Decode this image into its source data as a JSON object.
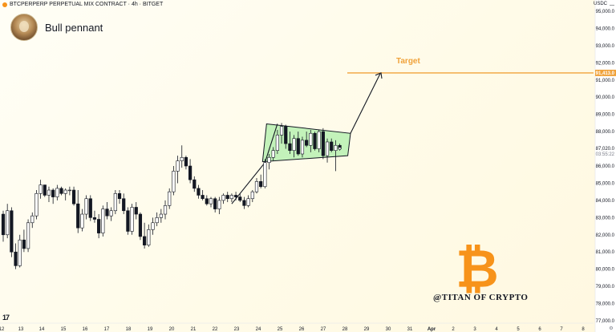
{
  "header": {
    "symbol_title": "BTCPERPERP PERPETUAL MIX CONTRACT · 4h · BITGET",
    "currency": "USDC",
    "idea_title": "Bull pennant"
  },
  "branding": {
    "tv_logo": "17",
    "watermark": "@TITAN OF CRYPTO",
    "btc_symbol": "₿"
  },
  "colors": {
    "up": "#131722",
    "down": "#131722",
    "up_fill": "#ffffff",
    "pennant_fill": "#b9f0b2",
    "target_line": "#f0a23a",
    "price_badge": "#f0a23a",
    "brand": "#f7931a"
  },
  "chart_data": {
    "type": "candlestick",
    "title": "Bull pennant",
    "timeframe": "4h",
    "ylim": [
      77000,
      95000
    ],
    "y_ticks": [
      "95,000.0",
      "94,000.0",
      "93,000.0",
      "92,000.0",
      "91,000.0",
      "90,000.0",
      "89,000.0",
      "88,000.0",
      "87,000.0",
      "86,000.0",
      "85,000.0",
      "84,000.0",
      "83,000.0",
      "82,000.0",
      "81,000.0",
      "80,000.0",
      "79,000.0",
      "78,000.0",
      "77,000.0"
    ],
    "x_ticks": [
      "12",
      "13",
      "14",
      "15",
      "16",
      "17",
      "18",
      "19",
      "20",
      "21",
      "22",
      "23",
      "24",
      "25",
      "26",
      "27",
      "28",
      "29",
      "30",
      "31",
      "Apr",
      "2",
      "3",
      "4",
      "5",
      "6",
      "7",
      "8"
    ],
    "candles": [
      [
        83200,
        83400,
        81600,
        82000
      ],
      [
        82000,
        83800,
        81800,
        83400
      ],
      [
        83400,
        83600,
        80700,
        81000
      ],
      [
        81000,
        81500,
        80000,
        80200
      ],
      [
        80200,
        82000,
        80100,
        81700
      ],
      [
        81700,
        82300,
        81000,
        81200
      ],
      [
        81200,
        82900,
        81000,
        82700
      ],
      [
        82700,
        83300,
        82400,
        83100
      ],
      [
        83100,
        84600,
        82900,
        84400
      ],
      [
        84400,
        85200,
        84100,
        84900
      ],
      [
        84900,
        84900,
        84200,
        84300
      ],
      [
        84300,
        84800,
        83900,
        84600
      ],
      [
        84600,
        84700,
        83800,
        84200
      ],
      [
        84200,
        84900,
        84000,
        84700
      ],
      [
        84700,
        84800,
        84300,
        84400
      ],
      [
        84400,
        84700,
        84000,
        84600
      ],
      [
        84600,
        84800,
        84300,
        84600
      ],
      [
        84600,
        84800,
        83700,
        83800
      ],
      [
        83800,
        84600,
        82100,
        82400
      ],
      [
        82400,
        83500,
        82200,
        83200
      ],
      [
        83200,
        84300,
        82900,
        84100
      ],
      [
        84100,
        84300,
        82800,
        83000
      ],
      [
        83000,
        83400,
        82700,
        82900
      ],
      [
        82900,
        83200,
        81800,
        82100
      ],
      [
        82100,
        83700,
        81900,
        83500
      ],
      [
        83500,
        83900,
        82900,
        83100
      ],
      [
        83100,
        83600,
        82800,
        83400
      ],
      [
        83400,
        84600,
        83200,
        84400
      ],
      [
        84400,
        84600,
        83800,
        84100
      ],
      [
        84100,
        84400,
        83200,
        83400
      ],
      [
        83400,
        83600,
        82000,
        82200
      ],
      [
        82200,
        83800,
        82000,
        83600
      ],
      [
        83600,
        83900,
        82900,
        83200
      ],
      [
        83200,
        83300,
        81700,
        81900
      ],
      [
        81900,
        82700,
        81200,
        81400
      ],
      [
        81400,
        82600,
        81300,
        82300
      ],
      [
        82300,
        83000,
        82000,
        82700
      ],
      [
        82700,
        83300,
        82500,
        83000
      ],
      [
        83000,
        83500,
        82700,
        83200
      ],
      [
        83200,
        84000,
        82900,
        83700
      ],
      [
        83700,
        84700,
        83500,
        84500
      ],
      [
        84500,
        86000,
        84300,
        85700
      ],
      [
        85700,
        86600,
        85000,
        86300
      ],
      [
        86300,
        87200,
        85900,
        86500
      ],
      [
        86500,
        86600,
        85800,
        86000
      ],
      [
        86000,
        86400,
        85000,
        85200
      ],
      [
        85200,
        85400,
        84500,
        84700
      ],
      [
        84700,
        84900,
        84100,
        84300
      ],
      [
        84300,
        84600,
        84000,
        84100
      ],
      [
        84100,
        84300,
        83700,
        83800
      ],
      [
        83800,
        84200,
        83600,
        84100
      ],
      [
        84100,
        84200,
        83300,
        83500
      ],
      [
        83500,
        84200,
        83200,
        84000
      ],
      [
        84000,
        84400,
        83800,
        84300
      ],
      [
        84300,
        84500,
        83900,
        84100
      ],
      [
        84100,
        84400,
        83900,
        84300
      ],
      [
        84300,
        84500,
        84000,
        84200
      ],
      [
        84200,
        84400,
        83900,
        84000
      ],
      [
        84000,
        84200,
        83500,
        83700
      ],
      [
        83700,
        84300,
        83600,
        84100
      ],
      [
        84100,
        84600,
        83900,
        84500
      ],
      [
        84500,
        85300,
        84400,
        85100
      ],
      [
        85100,
        85500,
        84700,
        84800
      ],
      [
        84800,
        86400,
        84700,
        86200
      ],
      [
        86200,
        86700,
        85800,
        86500
      ],
      [
        86500,
        87100,
        86300,
        86900
      ],
      [
        86900,
        88100,
        86700,
        87800
      ],
      [
        87800,
        88500,
        87300,
        88300
      ],
      [
        88300,
        88400,
        87000,
        87300
      ],
      [
        87300,
        88000,
        86700,
        86900
      ],
      [
        86900,
        87800,
        86500,
        87600
      ],
      [
        87600,
        88000,
        86600,
        86700
      ],
      [
        86700,
        87700,
        86500,
        87500
      ],
      [
        87500,
        88000,
        87100,
        87200
      ],
      [
        87200,
        88100,
        86800,
        87900
      ],
      [
        87900,
        88000,
        86900,
        87000
      ],
      [
        87000,
        88100,
        86800,
        88000
      ],
      [
        88000,
        88200,
        86400,
        86600
      ],
      [
        86600,
        87600,
        86200,
        87400
      ],
      [
        87400,
        87600,
        86800,
        86900
      ],
      [
        86900,
        87500,
        85700,
        87200
      ],
      [
        87200,
        87300,
        86900,
        87000
      ]
    ],
    "price_levels": [
      {
        "label": "91,413.0",
        "value": 91413,
        "role": "target-line"
      },
      {
        "label": "87,020.0",
        "value": 87020,
        "role": "last-price"
      },
      {
        "label": "03:55:22",
        "value": 86700,
        "role": "countdown"
      }
    ],
    "annotations": {
      "target_label": "Target",
      "target_price": 91413
    }
  }
}
